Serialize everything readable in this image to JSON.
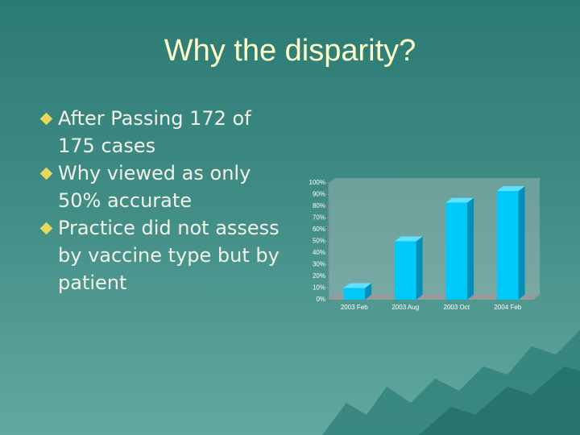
{
  "title": "Why the disparity?",
  "bullets": [
    "After Passing 172 of 175 cases",
    "Why viewed as only 50% accurate",
    "Practice did not assess by vaccine type but by patient"
  ],
  "chart_data": {
    "type": "bar",
    "categories": [
      "2003 Feb",
      "2003 Aug",
      "2003 Oct",
      "2004 Feb"
    ],
    "values": [
      10,
      50,
      83,
      93
    ],
    "color": "#00c8f8",
    "ylim": [
      0,
      100
    ],
    "yticks": [
      {
        "value": 0,
        "label": "0%"
      },
      {
        "value": 10,
        "label": "10%"
      },
      {
        "value": 20,
        "label": "20%"
      },
      {
        "value": 30,
        "label": "30%"
      },
      {
        "value": 40,
        "label": "40%"
      },
      {
        "value": 50,
        "label": "50%"
      },
      {
        "value": 60,
        "label": "60%"
      },
      {
        "value": 70,
        "label": "70%"
      },
      {
        "value": 80,
        "label": "80%"
      },
      {
        "value": 90,
        "label": "90%"
      },
      {
        "value": 100,
        "label": "100%"
      }
    ]
  }
}
